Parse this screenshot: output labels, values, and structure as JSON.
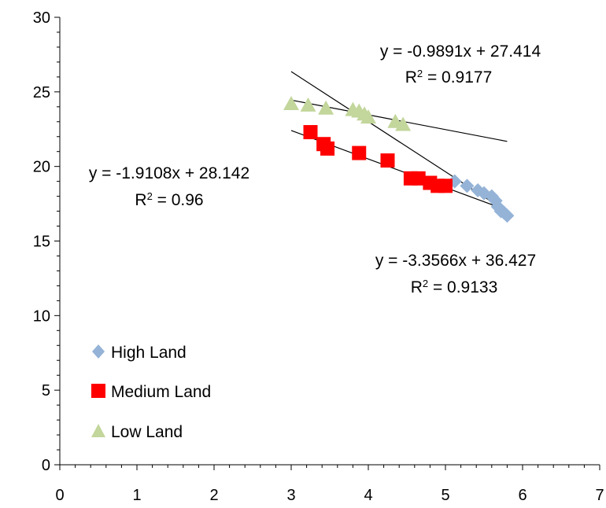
{
  "chart_data": {
    "type": "scatter",
    "xlim": [
      0,
      7
    ],
    "ylim": [
      0,
      30
    ],
    "x_ticks": [
      "0",
      "1",
      "2",
      "3",
      "4",
      "5",
      "6",
      "7"
    ],
    "y_ticks": [
      "0",
      "5",
      "10",
      "15",
      "20",
      "25",
      "30"
    ],
    "grid": false,
    "legend_position": "bottom-left",
    "series": [
      {
        "name": "High Land",
        "color": "#95b3d7",
        "marker": "diamond",
        "points": [
          {
            "x": 5.12,
            "y": 19.0
          },
          {
            "x": 5.28,
            "y": 18.7
          },
          {
            "x": 5.42,
            "y": 18.4
          },
          {
            "x": 5.5,
            "y": 18.2
          },
          {
            "x": 5.6,
            "y": 18.0
          },
          {
            "x": 5.65,
            "y": 17.7
          },
          {
            "x": 5.68,
            "y": 17.3
          },
          {
            "x": 5.72,
            "y": 17.0
          },
          {
            "x": 5.76,
            "y": 16.9
          },
          {
            "x": 5.8,
            "y": 16.7
          }
        ],
        "trendline": {
          "x": [
            3.0,
            5.8
          ],
          "y": [
            26.36,
            16.96
          ]
        }
      },
      {
        "name": "Medium Land",
        "color": "#ff0000",
        "marker": "square",
        "points": [
          {
            "x": 3.25,
            "y": 22.3
          },
          {
            "x": 3.42,
            "y": 21.5
          },
          {
            "x": 3.47,
            "y": 21.2
          },
          {
            "x": 3.88,
            "y": 20.9
          },
          {
            "x": 4.25,
            "y": 20.4
          },
          {
            "x": 4.55,
            "y": 19.2
          },
          {
            "x": 4.65,
            "y": 19.2
          },
          {
            "x": 4.8,
            "y": 18.9
          },
          {
            "x": 4.9,
            "y": 18.7
          },
          {
            "x": 5.0,
            "y": 18.7
          }
        ],
        "trendline": {
          "x": [
            3.0,
            5.8
          ],
          "y": [
            22.41,
            17.06
          ]
        }
      },
      {
        "name": "Low Land",
        "color": "#c3d69b",
        "marker": "triangle",
        "points": [
          {
            "x": 3.0,
            "y": 24.2
          },
          {
            "x": 3.22,
            "y": 24.1
          },
          {
            "x": 3.45,
            "y": 23.9
          },
          {
            "x": 3.8,
            "y": 23.8
          },
          {
            "x": 3.88,
            "y": 23.7
          },
          {
            "x": 3.95,
            "y": 23.5
          },
          {
            "x": 4.0,
            "y": 23.3
          },
          {
            "x": 4.35,
            "y": 23.0
          },
          {
            "x": 4.45,
            "y": 22.8
          }
        ],
        "trendline": {
          "x": [
            3.0,
            5.8
          ],
          "y": [
            24.45,
            21.68
          ]
        }
      }
    ],
    "annotations": [
      {
        "id": "low",
        "line1": "y = -0.9891x + 27.414",
        "line2_prefix": "R",
        "line2_sup": "2",
        "line2_suffix": " = 0.9177"
      },
      {
        "id": "medium",
        "line1": "y = -1.9108x + 28.142",
        "line2_prefix": "R",
        "line2_sup": "2",
        "line2_suffix": " = 0.96"
      },
      {
        "id": "high",
        "line1": "y = -3.3566x + 36.427",
        "line2_prefix": "R",
        "line2_sup": "2",
        "line2_suffix": " = 0.9133"
      }
    ]
  }
}
